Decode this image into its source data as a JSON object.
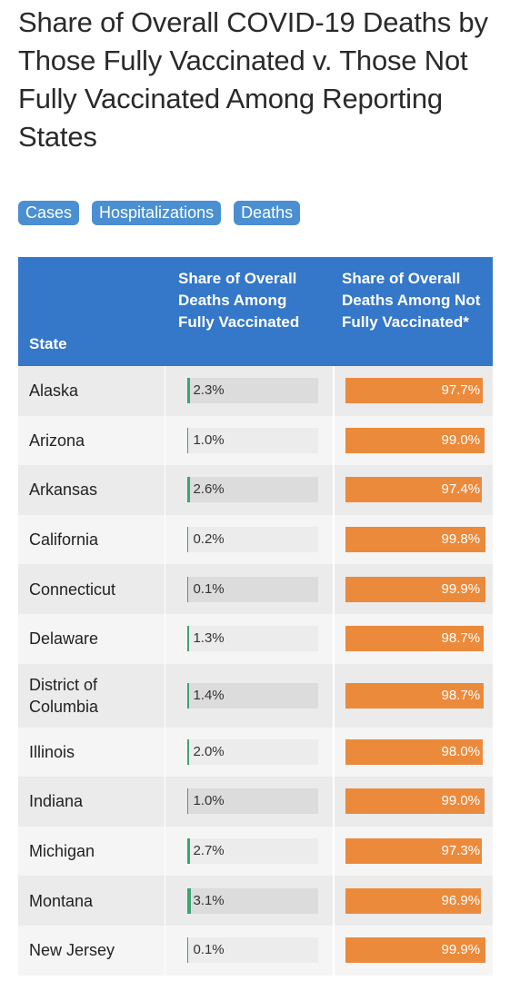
{
  "title": "Share of Overall COVID-19 Deaths by Those Fully Vaccinated v. Those Not Fully Vaccinated Among Reporting States",
  "tabs": [
    {
      "label": "Cases"
    },
    {
      "label": "Hospitalizations"
    },
    {
      "label": "Deaths"
    }
  ],
  "table": {
    "headers": {
      "state": "State",
      "vaccinated": "Share of Overall Deaths Among Fully Vaccinated",
      "not_vaccinated": "Share of Overall Deaths Among Not Fully Vaccinated*"
    }
  },
  "colors": {
    "header_bg": "#3577c8",
    "tab_bg": "#4a8fd1",
    "vaccinated_bar": "#3aa56e",
    "not_vaccinated_bar": "#ec8a3c"
  },
  "chart_data": {
    "type": "table",
    "title": "Share of Overall COVID-19 Deaths by Those Fully Vaccinated v. Those Not Fully Vaccinated Among Reporting States",
    "columns": [
      "State",
      "Share of Overall Deaths Among Fully Vaccinated",
      "Share of Overall Deaths Among Not Fully Vaccinated*"
    ],
    "rows": [
      {
        "state": "Alaska",
        "vaccinated": 2.3,
        "vaccinated_label": "2.3%",
        "not_vaccinated": 97.7,
        "not_vaccinated_label": "97.7%"
      },
      {
        "state": "Arizona",
        "vaccinated": 1.0,
        "vaccinated_label": "1.0%",
        "not_vaccinated": 99.0,
        "not_vaccinated_label": "99.0%"
      },
      {
        "state": "Arkansas",
        "vaccinated": 2.6,
        "vaccinated_label": "2.6%",
        "not_vaccinated": 97.4,
        "not_vaccinated_label": "97.4%"
      },
      {
        "state": "California",
        "vaccinated": 0.2,
        "vaccinated_label": "0.2%",
        "not_vaccinated": 99.8,
        "not_vaccinated_label": "99.8%"
      },
      {
        "state": "Connecticut",
        "vaccinated": 0.1,
        "vaccinated_label": "0.1%",
        "not_vaccinated": 99.9,
        "not_vaccinated_label": "99.9%"
      },
      {
        "state": "Delaware",
        "vaccinated": 1.3,
        "vaccinated_label": "1.3%",
        "not_vaccinated": 98.7,
        "not_vaccinated_label": "98.7%"
      },
      {
        "state": "District of Columbia",
        "vaccinated": 1.4,
        "vaccinated_label": "1.4%",
        "not_vaccinated": 98.7,
        "not_vaccinated_label": "98.7%",
        "tall": true
      },
      {
        "state": "Illinois",
        "vaccinated": 2.0,
        "vaccinated_label": "2.0%",
        "not_vaccinated": 98.0,
        "not_vaccinated_label": "98.0%"
      },
      {
        "state": "Indiana",
        "vaccinated": 1.0,
        "vaccinated_label": "1.0%",
        "not_vaccinated": 99.0,
        "not_vaccinated_label": "99.0%"
      },
      {
        "state": "Michigan",
        "vaccinated": 2.7,
        "vaccinated_label": "2.7%",
        "not_vaccinated": 97.3,
        "not_vaccinated_label": "97.3%"
      },
      {
        "state": "Montana",
        "vaccinated": 3.1,
        "vaccinated_label": "3.1%",
        "not_vaccinated": 96.9,
        "not_vaccinated_label": "96.9%"
      },
      {
        "state": "New Jersey",
        "vaccinated": 0.1,
        "vaccinated_label": "0.1%",
        "not_vaccinated": 99.9,
        "not_vaccinated_label": "99.9%"
      }
    ]
  }
}
